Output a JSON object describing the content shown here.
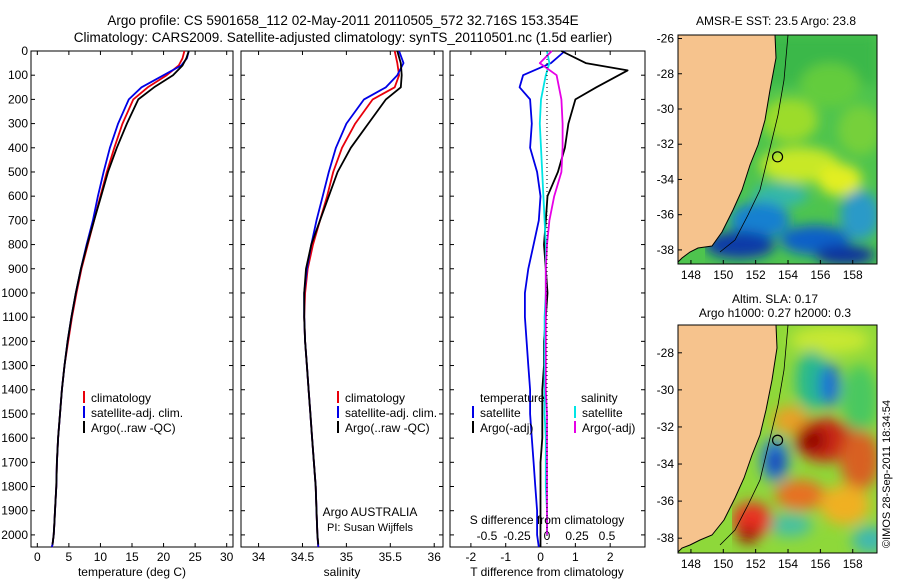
{
  "header": {
    "title_line1": "Argo profile: CS 5901658_112 02-May-2011 20110505_572 32.716S 153.354E",
    "title_line2": "Climatology: CARS2009. Satellite-adjusted climatology: synTS_20110501.nc (1.5d earlier)"
  },
  "colors": {
    "climatology": "#e8000b",
    "satellite": "#0000e6",
    "argo": "#000000",
    "salinity_satellite": "#00e5e5",
    "salinity_argo": "#e600e6",
    "land": "#f6c38d"
  },
  "chart_data": [
    {
      "type": "line",
      "id": "temperature",
      "xlabel": "temperature (deg C)",
      "xlim": [
        -1,
        31
      ],
      "xticks": [
        0,
        5,
        10,
        15,
        20,
        25,
        30
      ],
      "ylim": [
        2050,
        0
      ],
      "yticks": [
        0,
        100,
        200,
        300,
        400,
        500,
        600,
        700,
        800,
        900,
        1000,
        1100,
        1200,
        1300,
        1400,
        1500,
        1600,
        1700,
        1800,
        1900,
        2000
      ],
      "legend": [
        "climatology",
        "satellite-adj. clim.",
        "Argo(..raw -QC)"
      ],
      "series": [
        {
          "name": "climatology",
          "color_key": "climatology",
          "x": [
            23.3,
            23.0,
            22.4,
            20.5,
            17.5,
            15.2,
            13.5,
            12.2,
            11.0,
            10.0,
            9.0,
            8.0,
            7.0,
            6.2,
            5.5,
            4.9,
            4.3,
            3.9,
            3.6,
            3.3,
            3.1,
            3.0,
            2.8,
            2.7,
            2.6,
            2.5,
            2.4,
            2.3
          ],
          "y": [
            0,
            30,
            60,
            100,
            150,
            200,
            300,
            400,
            500,
            600,
            700,
            800,
            900,
            1000,
            1100,
            1200,
            1300,
            1400,
            1500,
            1600,
            1700,
            1800,
            1900,
            1950,
            2000,
            2020,
            2040,
            2050
          ]
        },
        {
          "name": "satellite-adj. clim.",
          "color_key": "satellite",
          "x": [
            24.0,
            23.7,
            22.8,
            20.0,
            16.5,
            14.5,
            12.8,
            11.5,
            10.5,
            9.6,
            8.8,
            7.8,
            6.9,
            6.1,
            5.4,
            4.8,
            4.3,
            3.9,
            3.6,
            3.3,
            3.1,
            3.0,
            2.8,
            2.7,
            2.6,
            2.5,
            2.4,
            2.3
          ],
          "y": [
            0,
            30,
            60,
            100,
            150,
            200,
            300,
            400,
            500,
            600,
            700,
            800,
            900,
            1000,
            1100,
            1200,
            1300,
            1400,
            1500,
            1600,
            1700,
            1800,
            1900,
            1950,
            2000,
            2020,
            2040,
            2050
          ]
        },
        {
          "name": "Argo(..raw -QC)",
          "color_key": "argo",
          "x": [
            24.0,
            23.6,
            23.0,
            21.5,
            18.5,
            16.0,
            14.2,
            12.6,
            11.2,
            10.1,
            9.0,
            7.9,
            6.9,
            6.1,
            5.4,
            4.8,
            4.3,
            3.9,
            3.6,
            3.3,
            3.1,
            3.0,
            2.8,
            2.7,
            2.6,
            2.5,
            2.4
          ],
          "y": [
            0,
            30,
            60,
            100,
            150,
            200,
            300,
            400,
            500,
            600,
            700,
            800,
            900,
            1000,
            1100,
            1200,
            1300,
            1400,
            1500,
            1600,
            1700,
            1800,
            1900,
            1950,
            2000,
            2020,
            2040
          ]
        }
      ]
    },
    {
      "type": "line",
      "id": "salinity",
      "xlabel": "salinity",
      "xlim": [
        33.8,
        36.1
      ],
      "xticks": [
        34,
        34.5,
        35,
        35.5,
        36
      ],
      "xtick_labels": [
        "34",
        "34.5",
        "35",
        "35.5",
        "36"
      ],
      "ylim": [
        2050,
        0
      ],
      "legend": [
        "climatology",
        "satellite-adj. clim.",
        "Argo(..raw -QC)"
      ],
      "annotation_line1": "Argo AUSTRALIA",
      "annotation_line2": "PI: Susan Wijffels",
      "series": [
        {
          "name": "climatology",
          "color_key": "climatology",
          "x": [
            35.55,
            35.58,
            35.6,
            35.55,
            35.3,
            35.1,
            34.95,
            34.85,
            34.78,
            34.7,
            34.62,
            34.56,
            34.53,
            34.52,
            34.53,
            34.55,
            34.57,
            34.59,
            34.61,
            34.63,
            34.65,
            34.66,
            34.67,
            34.68
          ],
          "y": [
            0,
            50,
            100,
            150,
            200,
            300,
            400,
            500,
            600,
            700,
            800,
            900,
            1000,
            1100,
            1200,
            1300,
            1400,
            1500,
            1600,
            1700,
            1800,
            1900,
            2000,
            2050
          ]
        },
        {
          "name": "satellite-adj. clim.",
          "color_key": "satellite",
          "x": [
            35.6,
            35.65,
            35.58,
            35.45,
            35.2,
            35.0,
            34.88,
            34.8,
            34.73,
            34.66,
            34.6,
            34.55,
            34.52,
            34.52,
            34.53,
            34.55,
            34.57,
            34.59,
            34.61,
            34.63,
            34.65,
            34.66,
            34.67,
            34.68
          ],
          "y": [
            0,
            50,
            100,
            150,
            200,
            300,
            400,
            500,
            600,
            700,
            800,
            900,
            1000,
            1100,
            1200,
            1300,
            1400,
            1500,
            1600,
            1700,
            1800,
            1900,
            2000,
            2050
          ]
        },
        {
          "name": "Argo(..raw -QC)",
          "color_key": "argo",
          "x": [
            35.58,
            35.62,
            35.63,
            35.62,
            35.45,
            35.25,
            35.05,
            34.9,
            34.8,
            34.7,
            34.6,
            34.54,
            34.52,
            34.52,
            34.53,
            34.55,
            34.57,
            34.59,
            34.61,
            34.63,
            34.65,
            34.66,
            34.67,
            34.68
          ],
          "y": [
            0,
            50,
            100,
            150,
            200,
            300,
            400,
            500,
            600,
            700,
            800,
            900,
            1000,
            1100,
            1200,
            1300,
            1400,
            1500,
            1600,
            1700,
            1800,
            1900,
            2000,
            2040
          ]
        }
      ]
    },
    {
      "type": "line",
      "id": "difference",
      "xlabel": "T difference from climatology",
      "xlabel_top": "S difference from climatology",
      "xlim": [
        -2.6,
        3.0
      ],
      "xticks": [
        -2,
        -1,
        0,
        1,
        2
      ],
      "s_xticks": [
        -0.5,
        -0.25,
        0,
        0.25,
        0.5
      ],
      "s_xtick_labels": [
        "-0.5",
        "-0.25",
        "0",
        "0.25",
        "0.5"
      ],
      "ylim": [
        2050,
        0
      ],
      "legend_temperature_header": "temperature",
      "legend_salinity_header": "salinity",
      "legend_temperature": [
        "satellite",
        "Argo(-adj)"
      ],
      "legend_salinity": [
        "satellite",
        "Argo(-adj)"
      ],
      "series": [
        {
          "name": "satellite",
          "group": "temperature",
          "color_key": "satellite",
          "x": [
            0.7,
            0.3,
            -0.5,
            -0.6,
            -0.3,
            -0.25,
            -0.3,
            -0.1,
            0.0,
            -0.05,
            -0.2,
            -0.35,
            -0.45,
            -0.45,
            -0.4,
            -0.35,
            -0.3,
            -0.3,
            -0.25,
            -0.2,
            -0.15,
            -0.1,
            -0.1,
            -0.05
          ],
          "y": [
            0,
            50,
            100,
            150,
            200,
            300,
            400,
            500,
            600,
            700,
            800,
            900,
            1000,
            1100,
            1200,
            1300,
            1400,
            1500,
            1600,
            1700,
            1800,
            1900,
            2000,
            2050
          ]
        },
        {
          "name": "Argo(-adj)",
          "group": "temperature",
          "color_key": "argo",
          "x": [
            0.6,
            1.3,
            2.5,
            1.6,
            1.0,
            0.8,
            0.7,
            0.5,
            0.2,
            0.15,
            0.1,
            0.15,
            0.2,
            0.15,
            0.1,
            0.1,
            0.05,
            0.05,
            0.05,
            0.0,
            0.0,
            0.0,
            0.0,
            0.0
          ],
          "y": [
            0,
            50,
            80,
            150,
            200,
            300,
            400,
            500,
            600,
            700,
            800,
            900,
            1000,
            1100,
            1200,
            1300,
            1400,
            1500,
            1600,
            1700,
            1800,
            1900,
            2000,
            2050
          ]
        },
        {
          "name": "satellite",
          "group": "salinity",
          "color_key": "salinity_satellite",
          "x": [
            0.0,
            0.02,
            -0.01,
            -0.03,
            -0.05,
            -0.06,
            -0.05,
            -0.04,
            -0.03,
            -0.02,
            -0.01,
            -0.01,
            -0.01,
            -0.02,
            -0.02,
            -0.02,
            -0.02,
            -0.02,
            -0.01,
            -0.01,
            -0.01,
            0.0,
            0.0
          ],
          "y": [
            0,
            50,
            100,
            150,
            200,
            300,
            400,
            500,
            600,
            700,
            800,
            900,
            1000,
            1100,
            1200,
            1300,
            1400,
            1500,
            1600,
            1700,
            1800,
            1900,
            2000
          ]
        },
        {
          "name": "Argo(-adj)",
          "group": "salinity",
          "color_key": "salinity_argo",
          "x": [
            0.04,
            -0.06,
            0.08,
            0.1,
            0.12,
            0.13,
            0.13,
            0.12,
            0.06,
            0.02,
            0.0,
            -0.01,
            -0.01,
            -0.01,
            -0.01,
            -0.01,
            -0.01,
            0.0,
            0.0,
            0.0,
            0.0,
            0.0,
            0.0
          ],
          "y": [
            0,
            50,
            100,
            150,
            200,
            300,
            400,
            500,
            600,
            700,
            800,
            900,
            1000,
            1100,
            1200,
            1300,
            1400,
            1500,
            1600,
            1700,
            1800,
            1900,
            2000
          ]
        }
      ]
    },
    {
      "type": "heatmap",
      "id": "sst_map",
      "title": "AMSR-E SST: 23.5  Argo: 23.8",
      "xticks": [
        148,
        150,
        152,
        154,
        156,
        158
      ],
      "yticks": [
        -26,
        -28,
        -30,
        -32,
        -34,
        -36,
        -38
      ],
      "xlim": [
        147.2,
        159.5
      ],
      "ylim": [
        -38.8,
        -25.8
      ],
      "float_position": {
        "lon": 153.354,
        "lat": -32.716
      }
    },
    {
      "type": "heatmap",
      "id": "sla_map",
      "title_line1": "Altim. SLA: 0.17",
      "title_line2": "Argo h1000: 0.27 h2000: 0.3",
      "xticks": [
        148,
        150,
        152,
        154,
        156,
        158
      ],
      "yticks": [
        -28,
        -30,
        -32,
        -34,
        -36,
        -38
      ],
      "xlim": [
        147.2,
        159.5
      ],
      "ylim": [
        -38.8,
        -26.5
      ],
      "float_position": {
        "lon": 153.354,
        "lat": -32.716
      }
    }
  ],
  "footer": {
    "credit": "©IMOS 28-Sep-2011 18:34:54"
  }
}
